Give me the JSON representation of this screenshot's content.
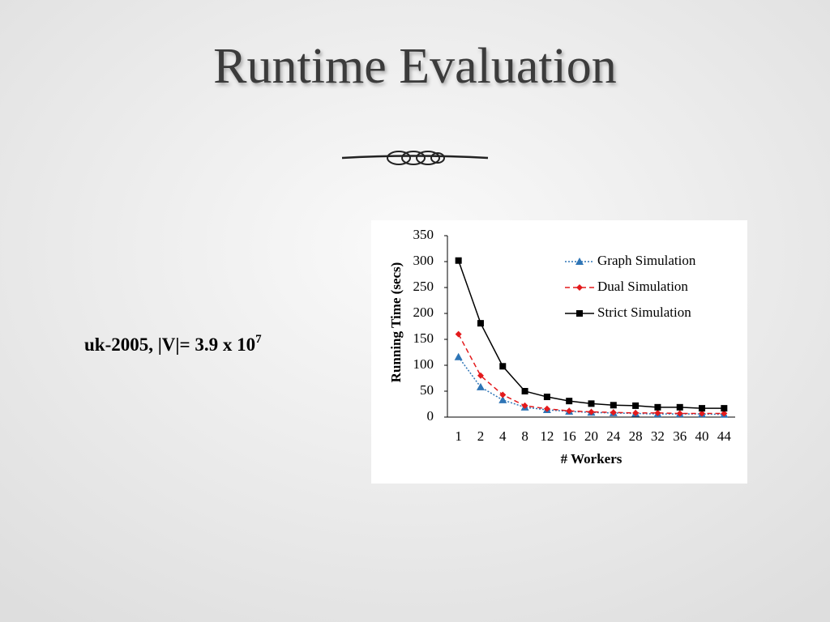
{
  "slide": {
    "title": "Runtime Evaluation",
    "dataset_label": {
      "text": "uk-2005,  |V|= 3.9 x 10",
      "superscript": "7"
    }
  },
  "chart_data": {
    "type": "line",
    "x_label": "# Workers",
    "y_label": "Running Time (secs)",
    "categories": [
      "1",
      "2",
      "4",
      "8",
      "12",
      "16",
      "20",
      "24",
      "28",
      "32",
      "36",
      "40",
      "44"
    ],
    "series": [
      {
        "name": "Graph Simulation",
        "color": "#2e75b6",
        "dash": "dotted",
        "marker": "triangle",
        "values": [
          116,
          58,
          33,
          19,
          14,
          11,
          9,
          8,
          7,
          6,
          6,
          6,
          5
        ]
      },
      {
        "name": "Dual Simulation",
        "color": "#e31a1c",
        "dash": "dashed",
        "marker": "diamond",
        "values": [
          160,
          80,
          43,
          22,
          16,
          12,
          10,
          9,
          8,
          8,
          7,
          7,
          7
        ]
      },
      {
        "name": "Strict Simulation",
        "color": "#000000",
        "dash": "solid",
        "marker": "square",
        "values": [
          302,
          181,
          98,
          50,
          39,
          31,
          26,
          23,
          22,
          19,
          19,
          17,
          17
        ]
      }
    ],
    "ylim": [
      0,
      350
    ],
    "yticks": [
      0,
      50,
      100,
      150,
      200,
      250,
      300,
      350
    ],
    "grid": false,
    "legend": "top-right"
  }
}
